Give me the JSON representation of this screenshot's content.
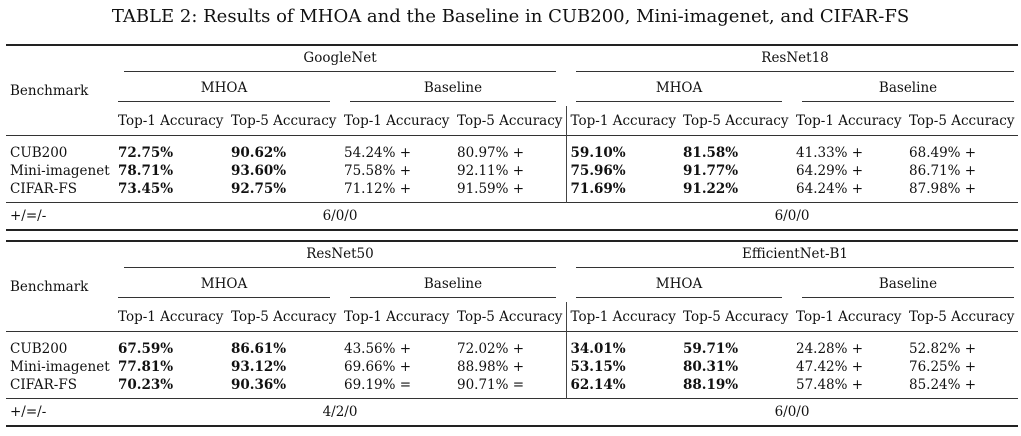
{
  "caption": "TABLE 2: Results of MHOA and the Baseline in CUB200, Mini-imagenet, and CIFAR-FS",
  "header": {
    "benchmark": "Benchmark",
    "mhoa": "MHOA",
    "baseline": "Baseline",
    "top1": "Top-1 Accuracy",
    "top5": "Top-5 Accuracy",
    "tally_label": "+/=/-"
  },
  "tables": [
    {
      "left_backbone": "GoogleNet",
      "right_backbone": "ResNet18",
      "rows": [
        {
          "benchmark": "CUB200",
          "l_m1": "72.75%",
          "l_m5": "90.62%",
          "l_b1": "54.24% +",
          "l_b5": "80.97% +",
          "r_m1": "59.10%",
          "r_m5": "81.58%",
          "r_b1": "41.33% +",
          "r_b5": "68.49% +"
        },
        {
          "benchmark": "Mini-imagenet",
          "l_m1": "78.71%",
          "l_m5": "93.60%",
          "l_b1": "75.58% +",
          "l_b5": "92.11% +",
          "r_m1": "75.96%",
          "r_m5": "91.77%",
          "r_b1": "64.29% +",
          "r_b5": "86.71% +"
        },
        {
          "benchmark": "CIFAR-FS",
          "l_m1": "73.45%",
          "l_m5": "92.75%",
          "l_b1": "71.12% +",
          "l_b5": "91.59% +",
          "r_m1": "71.69%",
          "r_m5": "91.22%",
          "r_b1": "64.24% +",
          "r_b5": "87.98% +"
        }
      ],
      "left_tally": "6/0/0",
      "right_tally": "6/0/0"
    },
    {
      "left_backbone": "ResNet50",
      "right_backbone": "EfficientNet-B1",
      "rows": [
        {
          "benchmark": "CUB200",
          "l_m1": "67.59%",
          "l_m5": "86.61%",
          "l_b1": "43.56% +",
          "l_b5": "72.02% +",
          "r_m1": "34.01%",
          "r_m5": "59.71%",
          "r_b1": "24.28% +",
          "r_b5": "52.82% +"
        },
        {
          "benchmark": "Mini-imagenet",
          "l_m1": "77.81%",
          "l_m5": "93.12%",
          "l_b1": "69.66% +",
          "l_b5": "88.98% +",
          "r_m1": "53.15%",
          "r_m5": "80.31%",
          "r_b1": "47.42% +",
          "r_b5": "76.25% +"
        },
        {
          "benchmark": "CIFAR-FS",
          "l_m1": "70.23%",
          "l_m5": "90.36%",
          "l_b1": "69.19% =",
          "l_b5": "90.71% =",
          "r_m1": "62.14%",
          "r_m5": "88.19%",
          "r_b1": "57.48% +",
          "r_b5": "85.24% +"
        }
      ],
      "left_tally": "4/2/0",
      "right_tally": "6/0/0"
    }
  ]
}
